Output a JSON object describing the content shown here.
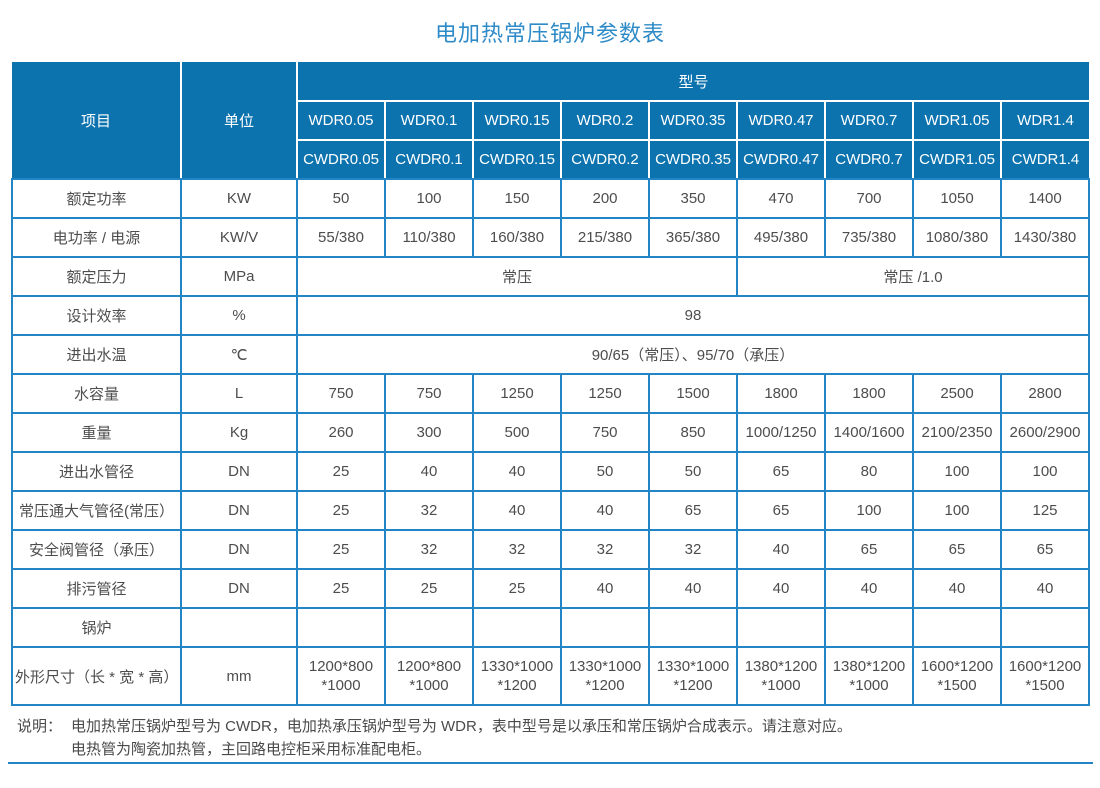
{
  "title": "电加热常压锅炉参数表",
  "colors": {
    "header_background": "#0d73ae",
    "table_border": "#2384c6",
    "title_text": "#2e8bc8",
    "body_text": "#4d4d4d"
  },
  "table": {
    "header": {
      "item_label": "项目",
      "unit_label": "单位",
      "model_label": "型号",
      "models_wdr": [
        "WDR0.05",
        "WDR0.1",
        "WDR0.15",
        "WDR0.2",
        "WDR0.35",
        "WDR0.47",
        "WDR0.7",
        "WDR1.05",
        "WDR1.4"
      ],
      "models_cwdr": [
        "CWDR0.05",
        "CWDR0.1",
        "CWDR0.15",
        "CWDR0.2",
        "CWDR0.35",
        "CWDR0.47",
        "CWDR0.7",
        "CWDR1.05",
        "CWDR1.4"
      ]
    },
    "rows": [
      {
        "label": "额定功率",
        "unit": "KW",
        "cells": [
          {
            "text": "50"
          },
          {
            "text": "100"
          },
          {
            "text": "150"
          },
          {
            "text": "200"
          },
          {
            "text": "350"
          },
          {
            "text": "470"
          },
          {
            "text": "700"
          },
          {
            "text": "1050"
          },
          {
            "text": "1400"
          }
        ]
      },
      {
        "label": "电功率 / 电源",
        "unit": "KW/V",
        "cells": [
          {
            "text": "55/380"
          },
          {
            "text": "110/380"
          },
          {
            "text": "160/380"
          },
          {
            "text": "215/380"
          },
          {
            "text": "365/380"
          },
          {
            "text": "495/380"
          },
          {
            "text": "735/380"
          },
          {
            "text": "1080/380"
          },
          {
            "text": "1430/380"
          }
        ]
      },
      {
        "label": "额定压力",
        "unit": "MPa",
        "cells": [
          {
            "text": "常压",
            "span": 5
          },
          {
            "text": "常压 /1.0",
            "span": 4
          }
        ]
      },
      {
        "label": "设计效率",
        "unit": "%",
        "cells": [
          {
            "text": "98",
            "span": 9
          }
        ]
      },
      {
        "label": "进出水温",
        "unit": "℃",
        "cells": [
          {
            "text": "90/65（常压）、95/70（承压）",
            "span": 9
          }
        ]
      },
      {
        "label": "水容量",
        "unit": "L",
        "cells": [
          {
            "text": "750"
          },
          {
            "text": "750"
          },
          {
            "text": "1250"
          },
          {
            "text": "1250"
          },
          {
            "text": "1500"
          },
          {
            "text": "1800"
          },
          {
            "text": "1800"
          },
          {
            "text": "2500"
          },
          {
            "text": "2800"
          }
        ]
      },
      {
        "label": "重量",
        "unit": "Kg",
        "cells": [
          {
            "text": "260"
          },
          {
            "text": "300"
          },
          {
            "text": "500"
          },
          {
            "text": "750"
          },
          {
            "text": "850"
          },
          {
            "text": "1000/1250"
          },
          {
            "text": "1400/1600"
          },
          {
            "text": "2100/2350"
          },
          {
            "text": "2600/2900"
          }
        ]
      },
      {
        "label": "进出水管径",
        "unit": "DN",
        "cells": [
          {
            "text": "25"
          },
          {
            "text": "40"
          },
          {
            "text": "40"
          },
          {
            "text": "50"
          },
          {
            "text": "50"
          },
          {
            "text": "65"
          },
          {
            "text": "80"
          },
          {
            "text": "100"
          },
          {
            "text": "100"
          }
        ]
      },
      {
        "label": "常压通大气管径(常压）",
        "unit": "DN",
        "cells": [
          {
            "text": "25"
          },
          {
            "text": "32"
          },
          {
            "text": "40"
          },
          {
            "text": "40"
          },
          {
            "text": "65"
          },
          {
            "text": "65"
          },
          {
            "text": "100"
          },
          {
            "text": "100"
          },
          {
            "text": "125"
          }
        ]
      },
      {
        "label": "安全阀管径（承压）",
        "unit": "DN",
        "cells": [
          {
            "text": "25"
          },
          {
            "text": "32"
          },
          {
            "text": "32"
          },
          {
            "text": "32"
          },
          {
            "text": "32"
          },
          {
            "text": "40"
          },
          {
            "text": "65"
          },
          {
            "text": "65"
          },
          {
            "text": "65"
          }
        ]
      },
      {
        "label": "排污管径",
        "unit": "DN",
        "cells": [
          {
            "text": "25"
          },
          {
            "text": "25"
          },
          {
            "text": "25"
          },
          {
            "text": "40"
          },
          {
            "text": "40"
          },
          {
            "text": "40"
          },
          {
            "text": "40"
          },
          {
            "text": "40"
          },
          {
            "text": "40"
          }
        ]
      },
      {
        "label": "锅炉",
        "unit": "",
        "cells": [
          {
            "text": ""
          },
          {
            "text": ""
          },
          {
            "text": ""
          },
          {
            "text": ""
          },
          {
            "text": ""
          },
          {
            "text": ""
          },
          {
            "text": ""
          },
          {
            "text": ""
          },
          {
            "text": ""
          }
        ]
      },
      {
        "label": "外形尺寸（长 * 宽 * 高）",
        "unit": "mm",
        "tall": true,
        "cells": [
          {
            "text": "1200*800\n*1000"
          },
          {
            "text": "1200*800\n*1000"
          },
          {
            "text": "1330*1000\n*1200"
          },
          {
            "text": "1330*1000\n*1200"
          },
          {
            "text": "1330*1000\n*1200"
          },
          {
            "text": "1380*1200\n*1000"
          },
          {
            "text": "1380*1200\n*1000"
          },
          {
            "text": "1600*1200\n*1500"
          },
          {
            "text": "1600*1200\n*1500"
          }
        ]
      }
    ]
  },
  "note": {
    "prefix": "说明：",
    "lines": [
      "电加热常压锅炉型号为 CWDR，电加热承压锅炉型号为 WDR，表中型号是以承压和常压锅炉合成表示。请注意对应。",
      "电热管为陶瓷加热管，主回路电控柜采用标准配电柜。"
    ]
  }
}
